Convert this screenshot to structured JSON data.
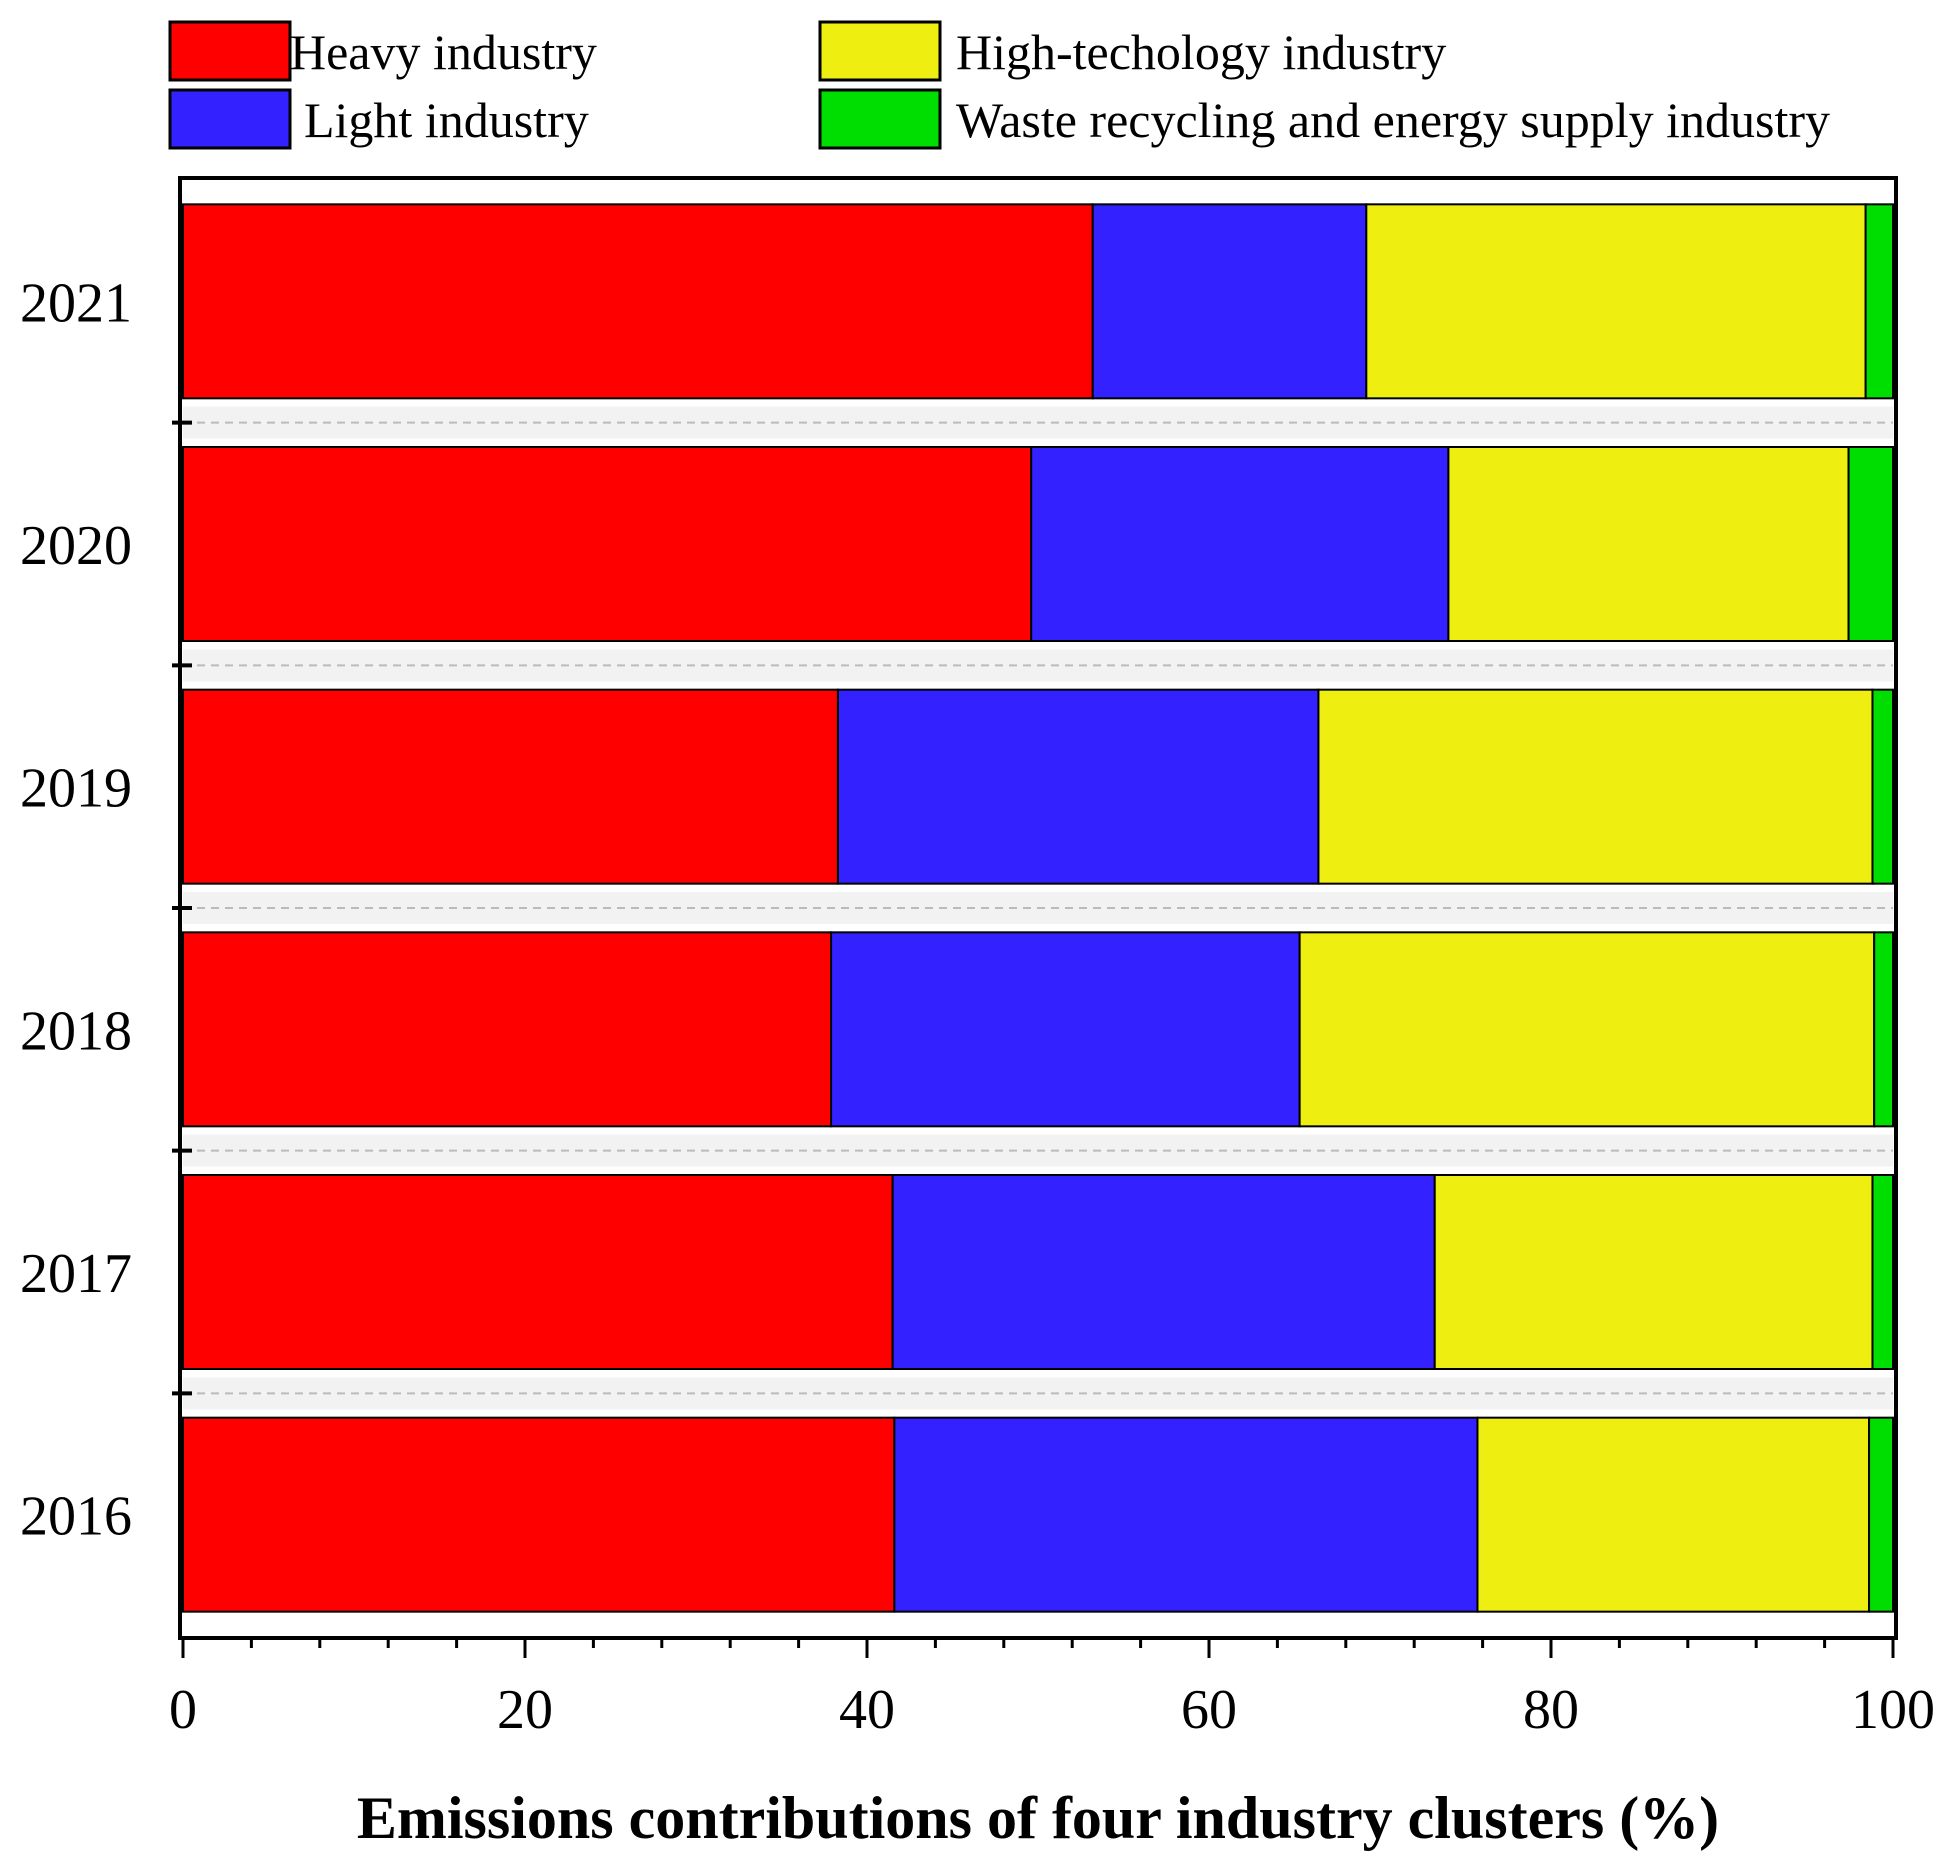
{
  "chart_data": {
    "type": "bar",
    "orientation": "horizontal",
    "stacked": true,
    "title": "",
    "xlabel": "Emissions contributions of four industry clusters (%)",
    "ylabel": "",
    "xlim": [
      0,
      100
    ],
    "x_ticks": [
      0,
      20,
      40,
      60,
      80,
      100
    ],
    "categories": [
      "2021",
      "2020",
      "2019",
      "2018",
      "2017",
      "2016"
    ],
    "series": [
      {
        "name": "Heavy industry",
        "color": "#ff0000",
        "values": [
          53.2,
          49.6,
          38.3,
          37.9,
          41.5,
          41.6
        ]
      },
      {
        "name": "Light industry",
        "color": "#3322ff",
        "values": [
          16.0,
          24.4,
          28.1,
          27.4,
          31.7,
          34.1
        ]
      },
      {
        "name": "High-techology industry",
        "color": "#eeee11",
        "values": [
          29.2,
          23.4,
          32.4,
          33.6,
          25.6,
          22.9
        ]
      },
      {
        "name": "Waste recycling and energy supply industry",
        "color": "#00dd00",
        "values": [
          1.6,
          2.6,
          1.2,
          1.1,
          1.2,
          1.4
        ]
      }
    ],
    "grid": false,
    "legend": "top"
  }
}
